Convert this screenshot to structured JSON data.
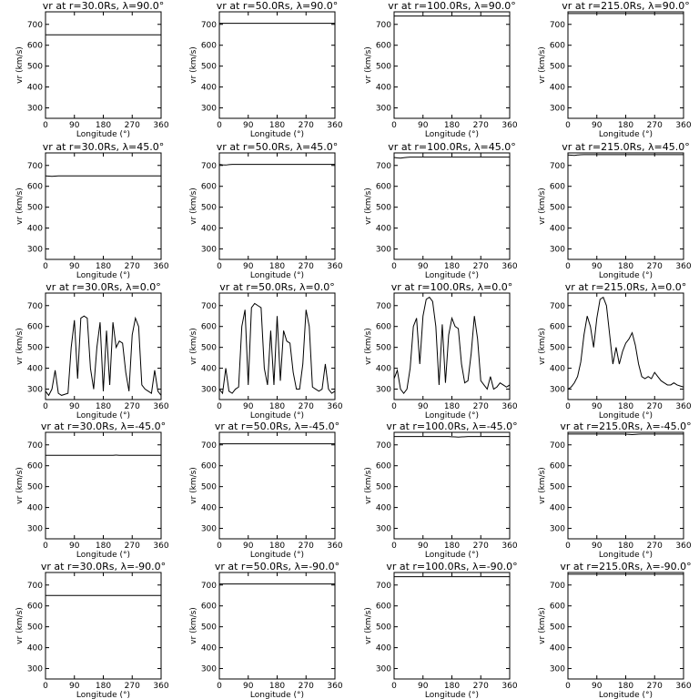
{
  "chart_data": {
    "type": "line",
    "xlabel": "Longitude (°)",
    "ylabel": "vr (km/s)",
    "xlim": [
      0,
      360
    ],
    "ylim": [
      250,
      760
    ],
    "xticks": [
      "0",
      "90",
      "180",
      "270",
      "360"
    ],
    "yticks": [
      "300",
      "400",
      "500",
      "600",
      "700"
    ],
    "grid": false,
    "panels": [
      {
        "title": "vr at r=30.0Rs, λ=90.0°",
        "radius": 30,
        "latitude": 90,
        "values": [
          650,
          650,
          650,
          650,
          650,
          650,
          650,
          650,
          650,
          650,
          650,
          650,
          650,
          650,
          650,
          650,
          650,
          650,
          650,
          650,
          650,
          650,
          650,
          650,
          650,
          650,
          650,
          650,
          650,
          650,
          650,
          650,
          650,
          650,
          650,
          650,
          650
        ]
      },
      {
        "title": "vr at r=50.0Rs, λ=90.0°",
        "radius": 50,
        "latitude": 90,
        "values": [
          705,
          705,
          705,
          705,
          705,
          705,
          705,
          705,
          705,
          705,
          705,
          705,
          705,
          705,
          705,
          705,
          705,
          705,
          705,
          705,
          705,
          705,
          705,
          705,
          705,
          705,
          705,
          705,
          705,
          705,
          705,
          705,
          705,
          705,
          705,
          705,
          705
        ]
      },
      {
        "title": "vr at r=100.0Rs, λ=90.0°",
        "radius": 100,
        "latitude": 90,
        "values": [
          740,
          740,
          740,
          740,
          740,
          740,
          740,
          740,
          740,
          740,
          740,
          740,
          740,
          740,
          740,
          740,
          740,
          740,
          740,
          740,
          740,
          740,
          740,
          740,
          740,
          740,
          740,
          740,
          740,
          740,
          740,
          740,
          740,
          740,
          740,
          740,
          740
        ]
      },
      {
        "title": "vr at r=215.0Rs, λ=90.0°",
        "radius": 215,
        "latitude": 90,
        "values": [
          752,
          752,
          752,
          752,
          752,
          752,
          752,
          752,
          752,
          752,
          752,
          752,
          752,
          752,
          752,
          752,
          752,
          752,
          752,
          752,
          752,
          752,
          752,
          752,
          752,
          752,
          752,
          752,
          752,
          752,
          752,
          752,
          752,
          752,
          752,
          752,
          752
        ]
      },
      {
        "title": "vr at r=30.0Rs, λ=45.0°",
        "radius": 30,
        "latitude": 45,
        "values": [
          650,
          649,
          648,
          649,
          650,
          650,
          650,
          650,
          650,
          650,
          650,
          650,
          650,
          650,
          650,
          650,
          650,
          650,
          650,
          650,
          650,
          650,
          650,
          650,
          650,
          650,
          650,
          650,
          650,
          650,
          650,
          650,
          650,
          650,
          650,
          650,
          650
        ]
      },
      {
        "title": "vr at r=50.0Rs, λ=45.0°",
        "radius": 50,
        "latitude": 45,
        "values": [
          705,
          703,
          702,
          704,
          705,
          705,
          705,
          705,
          705,
          705,
          705,
          705,
          705,
          705,
          705,
          705,
          705,
          705,
          705,
          705,
          705,
          705,
          705,
          705,
          705,
          705,
          705,
          705,
          705,
          705,
          705,
          705,
          705,
          705,
          705,
          705,
          705
        ]
      },
      {
        "title": "vr at r=100.0Rs, λ=45.0°",
        "radius": 100,
        "latitude": 45,
        "values": [
          738,
          736,
          735,
          737,
          739,
          740,
          740,
          740,
          740,
          740,
          740,
          740,
          740,
          740,
          740,
          740,
          740,
          740,
          740,
          740,
          740,
          740,
          740,
          740,
          740,
          740,
          740,
          740,
          740,
          740,
          740,
          740,
          740,
          740,
          740,
          740,
          740
        ]
      },
      {
        "title": "vr at r=215.0Rs, λ=45.0°",
        "radius": 215,
        "latitude": 45,
        "values": [
          750,
          749,
          748,
          750,
          751,
          752,
          752,
          752,
          752,
          752,
          752,
          752,
          752,
          752,
          752,
          752,
          752,
          752,
          752,
          752,
          752,
          752,
          752,
          752,
          752,
          752,
          752,
          752,
          752,
          752,
          752,
          752,
          752,
          752,
          752,
          752,
          752
        ]
      },
      {
        "title": "vr at r=30.0Rs, λ=0.0°",
        "radius": 30,
        "latitude": 0,
        "values": [
          290,
          270,
          300,
          390,
          280,
          270,
          275,
          280,
          500,
          630,
          350,
          640,
          650,
          640,
          400,
          300,
          500,
          620,
          290,
          580,
          320,
          620,
          500,
          530,
          520,
          380,
          290,
          560,
          640,
          600,
          320,
          300,
          290,
          280,
          390,
          290,
          270
        ]
      },
      {
        "title": "vr at r=50.0Rs, λ=0.0°",
        "radius": 50,
        "latitude": 0,
        "values": [
          300,
          280,
          400,
          290,
          280,
          300,
          310,
          600,
          680,
          320,
          690,
          710,
          700,
          690,
          400,
          320,
          580,
          320,
          650,
          340,
          580,
          530,
          520,
          380,
          300,
          300,
          420,
          680,
          600,
          310,
          300,
          290,
          300,
          420,
          300,
          280,
          290
        ]
      },
      {
        "title": "vr at r=100.0Rs, λ=0.0°",
        "radius": 100,
        "latitude": 0,
        "values": [
          350,
          390,
          300,
          280,
          300,
          400,
          600,
          640,
          420,
          650,
          730,
          740,
          720,
          600,
          320,
          610,
          330,
          560,
          640,
          600,
          590,
          420,
          330,
          340,
          470,
          650,
          540,
          340,
          320,
          300,
          360,
          300,
          310,
          330,
          320,
          310,
          320
        ]
      },
      {
        "title": "vr at r=215.0Rs, λ=0.0°",
        "radius": 215,
        "latitude": 0,
        "values": [
          300,
          310,
          330,
          360,
          430,
          560,
          650,
          600,
          500,
          640,
          730,
          740,
          700,
          560,
          420,
          500,
          420,
          480,
          520,
          540,
          570,
          510,
          420,
          360,
          350,
          360,
          350,
          380,
          360,
          340,
          330,
          320,
          320,
          330,
          320,
          315,
          310
        ]
      },
      {
        "title": "vr at r=30.0Rs, λ=-45.0°",
        "radius": 30,
        "latitude": -45,
        "values": [
          650,
          650,
          650,
          650,
          650,
          650,
          650,
          650,
          650,
          650,
          650,
          650,
          650,
          650,
          650,
          650,
          650,
          650,
          650,
          650,
          650,
          650,
          651,
          650,
          650,
          650,
          650,
          650,
          650,
          650,
          650,
          650,
          650,
          650,
          650,
          650,
          650
        ]
      },
      {
        "title": "vr at r=50.0Rs, λ=-45.0°",
        "radius": 50,
        "latitude": -45,
        "values": [
          705,
          705,
          705,
          705,
          705,
          705,
          705,
          705,
          705,
          705,
          705,
          705,
          705,
          705,
          705,
          705,
          705,
          705,
          705,
          705,
          705,
          705,
          705,
          705,
          705,
          705,
          705,
          705,
          705,
          705,
          705,
          705,
          705,
          705,
          705,
          705,
          705
        ]
      },
      {
        "title": "vr at r=100.0Rs, λ=-45.0°",
        "radius": 100,
        "latitude": -45,
        "values": [
          740,
          740,
          740,
          740,
          740,
          740,
          740,
          740,
          740,
          740,
          740,
          740,
          740,
          740,
          740,
          740,
          740,
          740,
          739,
          738,
          737,
          738,
          739,
          740,
          740,
          740,
          740,
          740,
          740,
          740,
          740,
          740,
          740,
          740,
          740,
          740,
          740
        ]
      },
      {
        "title": "vr at r=215.0Rs, λ=-45.0°",
        "radius": 215,
        "latitude": -45,
        "values": [
          752,
          752,
          752,
          752,
          752,
          752,
          752,
          752,
          752,
          752,
          752,
          752,
          752,
          752,
          752,
          752,
          752,
          752,
          751,
          750,
          749,
          750,
          751,
          752,
          752,
          752,
          752,
          752,
          752,
          752,
          752,
          752,
          752,
          752,
          752,
          752,
          752
        ]
      },
      {
        "title": "vr at r=30.0Rs, λ=-90.0°",
        "radius": 30,
        "latitude": -90,
        "values": [
          650,
          650,
          650,
          650,
          650,
          650,
          650,
          650,
          650,
          650,
          650,
          650,
          650,
          650,
          650,
          650,
          650,
          650,
          650,
          650,
          650,
          650,
          650,
          650,
          650,
          650,
          650,
          650,
          650,
          650,
          650,
          650,
          650,
          650,
          650,
          650,
          650
        ]
      },
      {
        "title": "vr at r=50.0Rs, λ=-90.0°",
        "radius": 50,
        "latitude": -90,
        "values": [
          705,
          705,
          705,
          705,
          705,
          705,
          705,
          705,
          705,
          705,
          705,
          705,
          705,
          705,
          705,
          705,
          705,
          705,
          705,
          705,
          705,
          705,
          705,
          705,
          705,
          705,
          705,
          705,
          705,
          705,
          705,
          705,
          705,
          705,
          705,
          705,
          705
        ]
      },
      {
        "title": "vr at r=100.0Rs, λ=-90.0°",
        "radius": 100,
        "latitude": -90,
        "values": [
          740,
          740,
          740,
          740,
          740,
          740,
          740,
          740,
          740,
          740,
          740,
          740,
          740,
          740,
          740,
          740,
          740,
          740,
          740,
          740,
          740,
          740,
          740,
          740,
          740,
          740,
          740,
          740,
          740,
          740,
          740,
          740,
          740,
          740,
          740,
          740,
          740
        ]
      },
      {
        "title": "vr at r=215.0Rs, λ=-90.0°",
        "radius": 215,
        "latitude": -90,
        "values": [
          752,
          752,
          752,
          752,
          752,
          752,
          752,
          752,
          752,
          752,
          752,
          752,
          752,
          752,
          752,
          752,
          752,
          752,
          752,
          752,
          752,
          752,
          752,
          752,
          752,
          752,
          752,
          752,
          752,
          752,
          752,
          752,
          752,
          752,
          752,
          752,
          752
        ]
      }
    ]
  }
}
